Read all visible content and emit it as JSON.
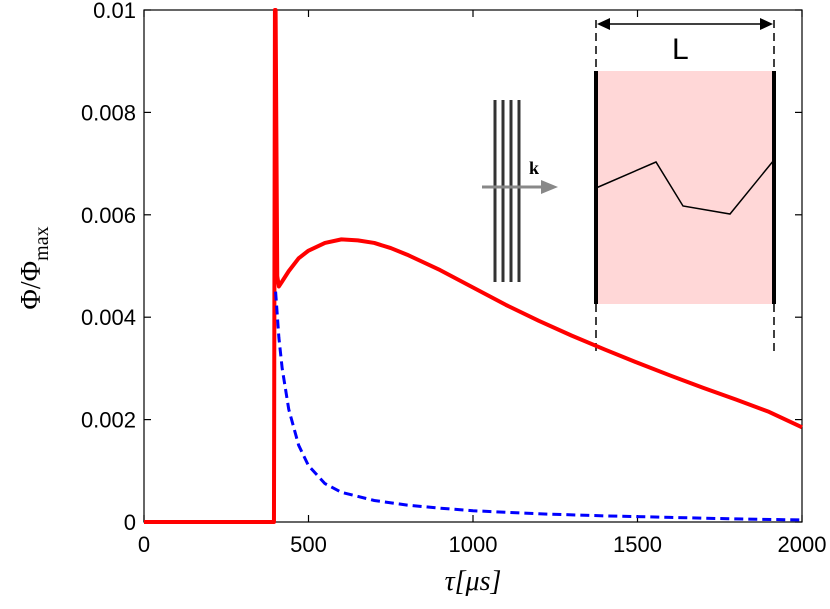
{
  "chart_data": {
    "type": "line",
    "title": "",
    "xlabel": "τ[μs]",
    "ylabel": "Φ/Φ_max",
    "xlim": [
      0,
      2000
    ],
    "ylim": [
      0,
      0.01
    ],
    "x_ticks": [
      0,
      500,
      1000,
      1500,
      2000
    ],
    "y_ticks": [
      0,
      0.002,
      0.004,
      0.006,
      0.008,
      0.01
    ],
    "x_tick_labels": [
      "0",
      "500",
      "1000",
      "1500",
      "2000"
    ],
    "y_tick_labels": [
      "0",
      "0.002",
      "0.004",
      "0.006",
      "0.008",
      "0.01"
    ],
    "grid": false,
    "series": [
      {
        "color": "#ff0000",
        "style": "solid",
        "x": [
          0,
          395,
          398,
          400,
          405,
          410,
          420,
          440,
          470,
          500,
          550,
          600,
          650,
          700,
          750,
          800,
          900,
          1000,
          1100,
          1200,
          1300,
          1400,
          1500,
          1600,
          1700,
          1800,
          1900,
          2000
        ],
        "y": [
          0,
          0,
          0.0105,
          0.0105,
          0.0048,
          0.0046,
          0.0047,
          0.0049,
          0.00515,
          0.0053,
          0.00545,
          0.00552,
          0.0055,
          0.00545,
          0.00535,
          0.00522,
          0.00492,
          0.00458,
          0.00424,
          0.00393,
          0.00364,
          0.00337,
          0.00311,
          0.00286,
          0.00262,
          0.00239,
          0.00215,
          0.00185
        ]
      },
      {
        "color": "#0000ff",
        "style": "dashed",
        "x": [
          400,
          410,
          420,
          440,
          470,
          500,
          550,
          600,
          700,
          800,
          900,
          1000,
          1200,
          1400,
          1600,
          1800,
          2000
        ],
        "y": [
          0.0045,
          0.0036,
          0.003,
          0.0022,
          0.0015,
          0.0011,
          0.00075,
          0.00058,
          0.00042,
          0.00033,
          0.00027,
          0.00022,
          0.00016,
          0.00012,
          9e-05,
          6e-05,
          4e-05
        ]
      }
    ]
  },
  "inset": {
    "wave_label": "k",
    "length_label": "L",
    "slab_color": "#ffd7d7",
    "arrow_color": "#888888"
  }
}
